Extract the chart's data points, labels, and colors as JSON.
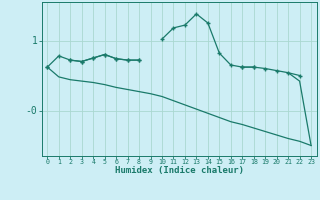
{
  "xlabel": "Humidex (Indice chaleur)",
  "x": [
    0,
    1,
    2,
    3,
    4,
    5,
    6,
    7,
    8,
    9,
    10,
    11,
    12,
    13,
    14,
    15,
    16,
    17,
    18,
    19,
    20,
    21,
    22,
    23
  ],
  "line1": [
    0.62,
    0.78,
    0.72,
    0.7,
    0.75,
    0.8,
    0.74,
    0.72,
    0.72,
    null,
    1.02,
    1.18,
    1.22,
    1.38,
    1.25,
    0.82,
    0.65,
    0.62,
    0.62,
    null,
    null,
    null,
    null,
    null
  ],
  "line2": [
    0.62,
    null,
    0.72,
    0.7,
    0.75,
    0.8,
    0.74,
    0.72,
    0.72,
    null,
    null,
    null,
    null,
    null,
    null,
    null,
    null,
    0.62,
    0.62,
    0.6,
    0.57,
    0.54,
    0.5,
    null
  ],
  "line3": [
    0.62,
    0.48,
    0.44,
    0.42,
    0.4,
    0.37,
    0.33,
    0.3,
    0.27,
    0.24,
    0.2,
    0.14,
    0.08,
    0.02,
    -0.04,
    -0.1,
    -0.16,
    -0.2,
    -0.25,
    -0.3,
    -0.35,
    -0.4,
    -0.44,
    -0.5
  ],
  "line4": [
    0.62,
    null,
    null,
    null,
    null,
    null,
    null,
    null,
    null,
    null,
    null,
    null,
    null,
    null,
    null,
    null,
    null,
    null,
    null,
    null,
    null,
    0.54,
    0.42,
    -0.5
  ],
  "bg_color": "#cdeef5",
  "line_color": "#1a7a6a",
  "grid_color": "#aad8d0",
  "ylim": [
    -0.65,
    1.55
  ],
  "xlim": [
    -0.5,
    23.5
  ],
  "ytick_positions": [
    1.0,
    0.0
  ],
  "ytick_labels": [
    "1",
    "-0"
  ]
}
